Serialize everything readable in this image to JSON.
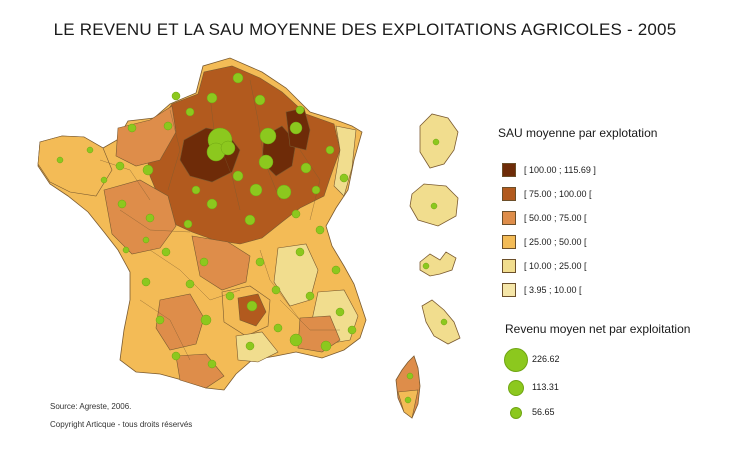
{
  "title": "LE REVENU ET LA SAU MOYENNE DES EXPLOITATIONS AGRICOLES - 2005",
  "legend_sau": {
    "title": "SAU moyenne par explotation",
    "classes": [
      {
        "label": "[ 100.00 ; 115.69 ]",
        "color": "#6e2b08"
      },
      {
        "label": "[ 75.00 ; 100.00 [",
        "color": "#b25a1e"
      },
      {
        "label": "[ 50.00 ; 75.00 [",
        "color": "#de8d4a"
      },
      {
        "label": "[ 25.00 ; 50.00 [",
        "color": "#f3bb56"
      },
      {
        "label": "[ 10.00 ; 25.00 [",
        "color": "#f1dd8e"
      },
      {
        "label": "[ 3.95 ; 10.00 [",
        "color": "#f5e6a8"
      }
    ]
  },
  "legend_revenu": {
    "title": "Revenu moyen net par exploitation",
    "items": [
      {
        "label": "226.62",
        "value": 226.62
      },
      {
        "label": "113.31",
        "value": 113.31
      },
      {
        "label": "56.65",
        "value": 56.65
      }
    ],
    "bubble_color": "#8cc81e"
  },
  "source": "Source: Agreste, 2006.",
  "copyright": "Copyright Articque - tous droits réservés"
}
